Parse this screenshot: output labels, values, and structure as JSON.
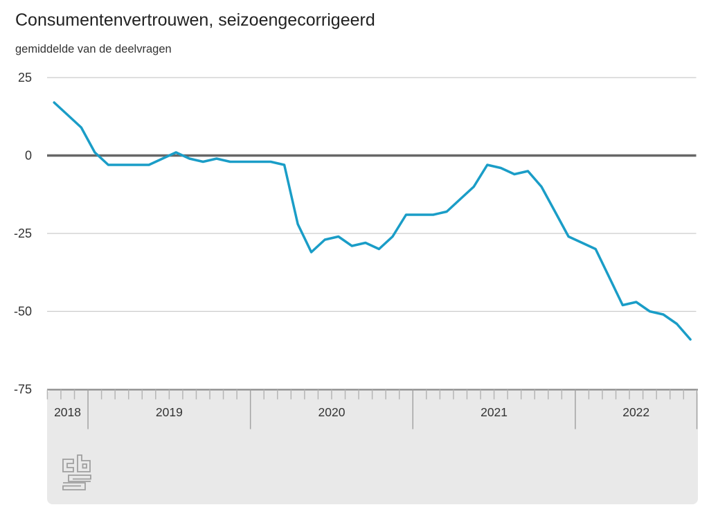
{
  "page": {
    "title": "Consumentenvertrouwen, seizoengecorrigeerd",
    "subtitle": "gemiddelde van de deelvragen"
  },
  "branding": {
    "logo": "cbs-logo"
  },
  "colors": {
    "accent_line": "#1a9dc7",
    "zero_line": "#666666",
    "gridline": "#cccccc",
    "text_primary": "#222222",
    "text_secondary": "#333333",
    "axis_band_bg": "#e9e9e9",
    "axis_band_border": "#8a8a8a",
    "tick_minor": "#b5b5b5",
    "tick_year": "#a3a3a3",
    "logo_gray": "#9e9e9e"
  },
  "chart_data": {
    "type": "line",
    "title": "Consumentenvertrouwen, seizoengecorrigeerd",
    "subtitle": "gemiddelde van de deelvragen",
    "grid": true,
    "legend": false,
    "y_axis": {
      "ticks": [
        25,
        0,
        -25,
        -50,
        -75
      ],
      "range": [
        -75,
        25
      ],
      "zero_line_emphasized": true
    },
    "x_axis": {
      "year_labels": [
        "2018",
        "2019",
        "2020",
        "2021",
        "2022"
      ],
      "minor_tick_interval": "month"
    },
    "series": [
      {
        "name": "Consumentenvertrouwen, seizoengecorrigeerd",
        "x": [
          "2018-10",
          "2018-11",
          "2018-12",
          "2019-01",
          "2019-02",
          "2019-03",
          "2019-04",
          "2019-05",
          "2019-06",
          "2019-07",
          "2019-08",
          "2019-09",
          "2019-10",
          "2019-11",
          "2019-12",
          "2020-01",
          "2020-02",
          "2020-03",
          "2020-04",
          "2020-05",
          "2020-06",
          "2020-07",
          "2020-08",
          "2020-09",
          "2020-10",
          "2020-11",
          "2020-12",
          "2021-01",
          "2021-02",
          "2021-03",
          "2021-04",
          "2021-05",
          "2021-06",
          "2021-07",
          "2021-08",
          "2021-09",
          "2021-10",
          "2021-11",
          "2021-12",
          "2022-01",
          "2022-02",
          "2022-03",
          "2022-04",
          "2022-05",
          "2022-06",
          "2022-07",
          "2022-08",
          "2022-09"
        ],
        "values": [
          17,
          13,
          9,
          1,
          -3,
          -3,
          -3,
          -3,
          -1,
          1,
          -1,
          -2,
          -1,
          -2,
          -2,
          -2,
          -2,
          -3,
          -22,
          -31,
          -27,
          -26,
          -29,
          -28,
          -30,
          -26,
          -19,
          -19,
          -19,
          -18,
          -14,
          -10,
          -3,
          -4,
          -6,
          -5,
          -10,
          -18,
          -26,
          -28,
          -30,
          -39,
          -48,
          -47,
          -50,
          -51,
          -54,
          -59
        ]
      }
    ]
  }
}
